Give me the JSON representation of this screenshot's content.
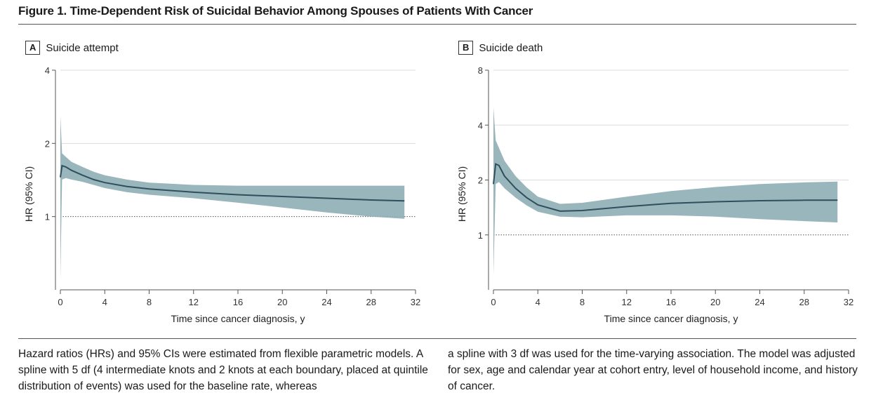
{
  "figure": {
    "title": "Figure 1. Time-Dependent Risk of Suicidal Behavior Among Spouses of Patients With Cancer",
    "caption_col1": "Hazard ratios (HRs) and 95% CIs were estimated from flexible parametric models. A spline with 5 df (4 intermediate knots and 2 knots at each boundary, placed at quintile distribution of events) was used for the baseline rate, whereas",
    "caption_col2": "a spline with 3 df was used for the time-varying association. The model was adjusted for sex, age and calendar year at cohort entry, level of household income, and history of cancer."
  },
  "colors": {
    "band": "#8faeb6",
    "line": "#2e4f5c",
    "axis": "#555555",
    "grid": "#dddddd",
    "ref": "#555555"
  },
  "chart_data": [
    {
      "panel": "A",
      "type": "line",
      "title": "Suicide attempt",
      "xlabel": "Time since cancer diagnosis, y",
      "ylabel": "HR (95% CI)",
      "xlim": [
        0,
        32
      ],
      "ylim": [
        0.5,
        4
      ],
      "yscale": "log",
      "xticks": [
        "0",
        "4",
        "8",
        "12",
        "16",
        "20",
        "24",
        "28",
        "32"
      ],
      "yticks": [
        "1",
        "2",
        "4"
      ],
      "reference_line": 1,
      "x": [
        0,
        0.15,
        0.5,
        1,
        2,
        3,
        4,
        6,
        8,
        12,
        16,
        20,
        24,
        28,
        31
      ],
      "y": [
        1.45,
        1.62,
        1.6,
        1.55,
        1.48,
        1.42,
        1.38,
        1.33,
        1.3,
        1.26,
        1.23,
        1.21,
        1.19,
        1.17,
        1.16
      ],
      "lower": [
        0.55,
        1.42,
        1.44,
        1.42,
        1.39,
        1.35,
        1.31,
        1.26,
        1.23,
        1.19,
        1.14,
        1.09,
        1.04,
        1.0,
        0.98
      ],
      "upper": [
        2.6,
        1.82,
        1.76,
        1.68,
        1.6,
        1.53,
        1.48,
        1.42,
        1.38,
        1.35,
        1.34,
        1.34,
        1.34,
        1.34,
        1.34
      ]
    },
    {
      "panel": "B",
      "type": "line",
      "title": "Suicide death",
      "xlabel": "Time since cancer diagnosis, y",
      "ylabel": "HR (95% CI)",
      "xlim": [
        0,
        32
      ],
      "ylim": [
        0.5,
        8
      ],
      "yscale": "log",
      "xticks": [
        "0",
        "4",
        "8",
        "12",
        "16",
        "20",
        "24",
        "28",
        "32"
      ],
      "yticks": [
        "1",
        "2",
        "4",
        "8"
      ],
      "reference_line": 1,
      "x": [
        0,
        0.2,
        0.5,
        1,
        2,
        3,
        4,
        6,
        8,
        12,
        16,
        20,
        24,
        28,
        31
      ],
      "y": [
        1.9,
        2.45,
        2.4,
        2.1,
        1.8,
        1.6,
        1.46,
        1.35,
        1.36,
        1.43,
        1.49,
        1.52,
        1.54,
        1.55,
        1.55
      ],
      "lower": [
        0.6,
        1.9,
        1.95,
        1.8,
        1.6,
        1.45,
        1.34,
        1.26,
        1.25,
        1.28,
        1.28,
        1.26,
        1.22,
        1.19,
        1.17
      ],
      "upper": [
        5.0,
        3.3,
        3.0,
        2.55,
        2.1,
        1.82,
        1.62,
        1.48,
        1.5,
        1.62,
        1.74,
        1.83,
        1.9,
        1.94,
        1.96
      ]
    }
  ]
}
